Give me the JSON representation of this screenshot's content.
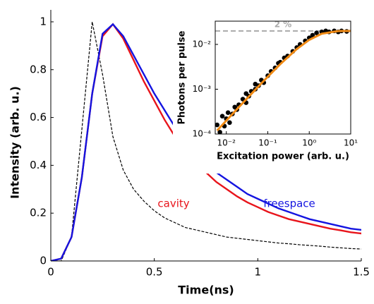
{
  "chart_data": [
    {
      "type": "line",
      "x_label": "Time(ns)",
      "y_label": "Intensity (arb. u.)",
      "xlim": [
        0,
        1.5
      ],
      "ylim": [
        0,
        1.05
      ],
      "xticks": [
        0,
        0.5,
        1,
        1.5
      ],
      "yticks": [
        0,
        0.2,
        0.4,
        0.6,
        0.8,
        1
      ],
      "x": [
        0,
        0.05,
        0.1,
        0.15,
        0.2,
        0.25,
        0.3,
        0.35,
        0.4,
        0.45,
        0.5,
        0.55,
        0.6,
        0.65,
        0.7,
        0.75,
        0.8,
        0.85,
        0.9,
        0.95,
        1.0,
        1.05,
        1.1,
        1.15,
        1.2,
        1.25,
        1.3,
        1.35,
        1.4,
        1.45,
        1.5
      ],
      "series": [
        {
          "color": "#000000",
          "dashed": true,
          "values": [
            0,
            0,
            0.1,
            0.55,
            1.0,
            0.78,
            0.52,
            0.38,
            0.3,
            0.25,
            0.21,
            0.18,
            0.16,
            0.14,
            0.13,
            0.12,
            0.11,
            0.1,
            0.095,
            0.09,
            0.085,
            0.08,
            0.075,
            0.072,
            0.068,
            0.065,
            0.062,
            0.058,
            0.055,
            0.052,
            0.05
          ]
        },
        {
          "name": "cavity",
          "color": "#e8141b",
          "values": [
            0,
            0.01,
            0.1,
            0.35,
            0.7,
            0.94,
            0.99,
            0.93,
            0.84,
            0.75,
            0.67,
            0.59,
            0.52,
            0.46,
            0.41,
            0.37,
            0.33,
            0.3,
            0.27,
            0.245,
            0.225,
            0.205,
            0.19,
            0.175,
            0.165,
            0.155,
            0.145,
            0.135,
            0.128,
            0.12,
            0.115
          ]
        },
        {
          "name": "freespace",
          "color": "#1414e0",
          "values": [
            0,
            0.01,
            0.1,
            0.35,
            0.7,
            0.95,
            0.99,
            0.94,
            0.86,
            0.78,
            0.7,
            0.63,
            0.56,
            0.5,
            0.45,
            0.41,
            0.37,
            0.34,
            0.31,
            0.28,
            0.26,
            0.24,
            0.22,
            0.205,
            0.19,
            0.175,
            0.165,
            0.155,
            0.145,
            0.135,
            0.13
          ]
        }
      ]
    },
    {
      "type": "scatter",
      "x_label": "Excitation power (arb. u.)",
      "y_label": "Photons per pulse",
      "xscale": "log",
      "yscale": "log",
      "xlim": [
        0.0054,
        10
      ],
      "ylim": [
        0.0001,
        0.033
      ],
      "xticks": [
        {
          "value": 0.01,
          "label": "10⁻²"
        },
        {
          "value": 0.1,
          "label": "10⁻¹"
        },
        {
          "value": 1,
          "label": "10⁰"
        },
        {
          "value": 10,
          "label": "10¹"
        }
      ],
      "yticks": [
        {
          "value": 0.0001,
          "label": "10⁻⁴"
        },
        {
          "value": 0.001,
          "label": "10⁻³"
        },
        {
          "value": 0.01,
          "label": "10⁻²"
        }
      ],
      "hline": {
        "value": 0.02,
        "label": "2 %",
        "color": "#aaaaaa"
      },
      "series": [
        {
          "mode": "points",
          "color": "#000000",
          "x": [
            0.006,
            0.007,
            0.008,
            0.009,
            0.01,
            0.011,
            0.012,
            0.014,
            0.016,
            0.018,
            0.02,
            0.025,
            0.03,
            0.03,
            0.035,
            0.04,
            0.05,
            0.05,
            0.06,
            0.07,
            0.08,
            0.1,
            0.12,
            0.15,
            0.18,
            0.2,
            0.25,
            0.3,
            0.4,
            0.5,
            0.6,
            0.8,
            1,
            1.2,
            1.5,
            2,
            2.5,
            3,
            4,
            5,
            6,
            8
          ],
          "values": [
            0.00016,
            0.00011,
            0.00025,
            0.00015,
            0.00022,
            0.0003,
            0.00018,
            0.00028,
            0.0004,
            0.00035,
            0.00045,
            0.0006,
            0.0005,
            0.0008,
            0.0007,
            0.0009,
            0.001,
            0.0013,
            0.0012,
            0.0016,
            0.0014,
            0.002,
            0.0025,
            0.003,
            0.0038,
            0.004,
            0.005,
            0.0055,
            0.007,
            0.0085,
            0.01,
            0.012,
            0.014,
            0.016,
            0.018,
            0.019,
            0.02,
            0.019,
            0.02,
            0.019,
            0.02,
            0.0195
          ]
        },
        {
          "mode": "line",
          "color": "#f08a14",
          "x": [
            0.006,
            0.01,
            0.02,
            0.05,
            0.1,
            0.2,
            0.5,
            1,
            2,
            5,
            10
          ],
          "values": [
            0.00012,
            0.000199,
            0.000396,
            0.000975,
            0.0019,
            0.00363,
            0.00787,
            0.01264,
            0.0173,
            0.01987,
            0.02
          ]
        }
      ]
    }
  ]
}
